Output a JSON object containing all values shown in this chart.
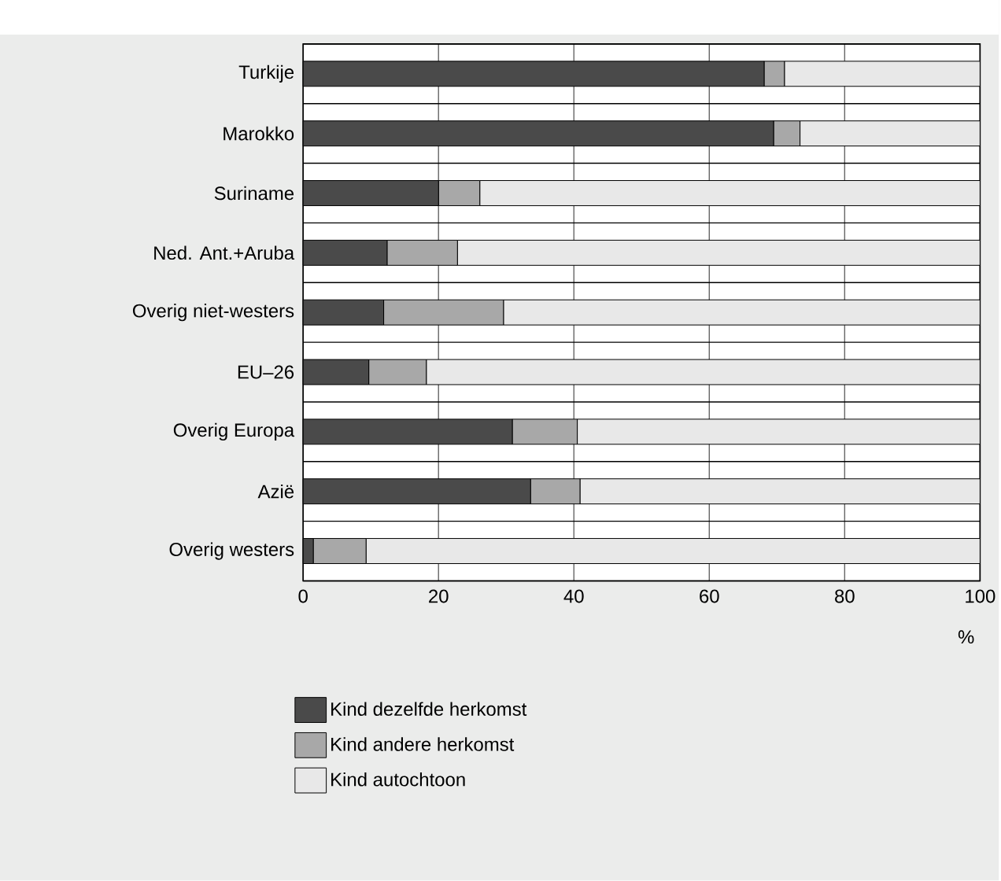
{
  "chart_data": {
    "type": "bar",
    "orientation": "horizontal",
    "stacked": true,
    "xlabel": "%",
    "categories": [
      "Turkije",
      "Marokko",
      "Suriname",
      "Ned. Ant.+Aruba",
      "Overig niet-westers",
      "EU–26",
      "Overig Europa",
      "Azië",
      "Overig westers"
    ],
    "series": [
      {
        "name": "Kind dezelfde herkomst",
        "color": "#4a4a4a",
        "values": [
          68.1,
          69.5,
          20.0,
          12.4,
          11.9,
          9.7,
          30.9,
          33.6,
          1.5
        ]
      },
      {
        "name": "Kind andere herkomst",
        "color": "#a8a8a8",
        "values": [
          3.0,
          3.9,
          6.1,
          10.4,
          17.7,
          8.5,
          9.6,
          7.3,
          7.8
        ]
      },
      {
        "name": "Kind autochtoon",
        "color": "#e8e8e8",
        "values": [
          28.9,
          26.6,
          73.9,
          77.2,
          70.4,
          81.8,
          59.5,
          59.1,
          90.7
        ]
      }
    ],
    "xlim": [
      0,
      100
    ],
    "xticks": [
      0,
      20,
      40,
      60,
      80,
      100
    ],
    "grid": true,
    "legend": "bottom"
  }
}
